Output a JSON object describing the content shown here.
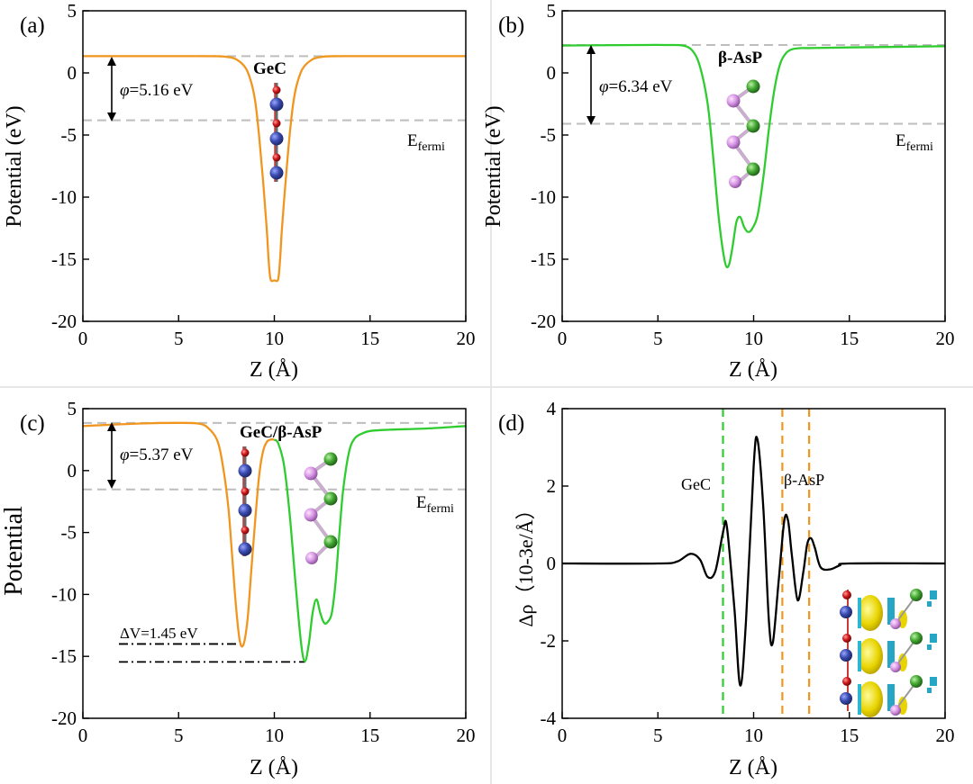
{
  "chart_data": [
    {
      "type": "line",
      "panel_label": "(a)",
      "title": "GeC",
      "xlabel": "Z (Å)",
      "ylabel": "Potential (eV)",
      "xlim": [
        0,
        20
      ],
      "ylim": [
        -20,
        5
      ],
      "xticks": [
        0,
        5,
        10,
        15,
        20
      ],
      "yticks": [
        5,
        0,
        -5,
        -10,
        -15,
        -20
      ],
      "series": [
        {
          "name": "GeC",
          "color": "#f0961e",
          "x": [
            0,
            6,
            7,
            7.5,
            8,
            8.5,
            8.8,
            9,
            9.2,
            9.4,
            9.6,
            9.7,
            9.8,
            10,
            10.2,
            10.3,
            10.4,
            10.6,
            10.8,
            11,
            11.2,
            11.5,
            12,
            12.5,
            13,
            14,
            20
          ],
          "y": [
            1.35,
            1.35,
            1.34,
            1.3,
            1.1,
            0.4,
            -0.8,
            -2.3,
            -5,
            -8.5,
            -12.5,
            -15,
            -16.6,
            -16.7,
            -16.6,
            -15,
            -12.5,
            -8.5,
            -5,
            -2.3,
            -0.8,
            0.4,
            1.1,
            1.3,
            1.34,
            1.35,
            1.35
          ]
        }
      ],
      "reference_lines": [
        {
          "name": "vacuum level",
          "y": 1.35
        },
        {
          "name": "E_fermi",
          "y": -3.81
        }
      ],
      "annotations": {
        "phi_symbol": "φ",
        "phi_text": "=5.16 eV",
        "efermi_main": "E",
        "efermi_sub": "fermi"
      }
    },
    {
      "type": "line",
      "panel_label": "(b)",
      "title": "β-AsP",
      "xlabel": "Z (Å)",
      "ylabel": "Potential (eV)",
      "xlim": [
        0,
        20
      ],
      "ylim": [
        -20,
        5
      ],
      "xticks": [
        0,
        5,
        10,
        15,
        20
      ],
      "yticks": [
        5,
        0,
        -5,
        -10,
        -15,
        -20
      ],
      "series": [
        {
          "name": "β-AsP",
          "color": "#2fcc2f",
          "x": [
            0,
            4,
            5.5,
            6.3,
            6.8,
            7.2,
            7.6,
            7.9,
            8.2,
            8.5,
            8.7,
            8.9,
            9.1,
            9.3,
            9.5,
            9.7,
            9.9,
            10.2,
            10.5,
            10.8,
            11.1,
            11.4,
            11.7,
            12,
            12.5,
            13,
            15,
            20
          ],
          "y": [
            2.2,
            2.25,
            2.25,
            2.2,
            1.8,
            0.5,
            -2.5,
            -7,
            -12,
            -15.2,
            -15.5,
            -14,
            -12,
            -11.6,
            -12.4,
            -12.8,
            -12.6,
            -11.5,
            -8.5,
            -4.5,
            -1.2,
            0.8,
            1.6,
            1.9,
            2.0,
            2.0,
            2.05,
            2.15
          ]
        }
      ],
      "reference_lines": [
        {
          "name": "vacuum level",
          "y": 2.25
        },
        {
          "name": "E_fermi",
          "y": -4.09
        }
      ],
      "annotations": {
        "phi_symbol": "φ",
        "phi_text": "=6.34 eV",
        "efermi_main": "E",
        "efermi_sub": "fermi"
      }
    },
    {
      "type": "line",
      "panel_label": "(c)",
      "title": "GeC/β-AsP",
      "xlabel": "Z (Å)",
      "ylabel": "Potential",
      "xlim": [
        0,
        20
      ],
      "ylim": [
        -20,
        5
      ],
      "xticks": [
        0,
        5,
        10,
        15,
        20
      ],
      "yticks": [
        5,
        0,
        -5,
        -10,
        -15,
        -20
      ],
      "series": [
        {
          "name": "GeC side",
          "color": "#f0961e",
          "x": [
            0,
            3,
            5,
            6,
            6.5,
            7,
            7.3,
            7.6,
            7.8,
            8,
            8.2,
            8.4,
            8.6,
            8.8,
            9,
            9.2,
            9.4,
            9.6,
            9.8,
            10
          ],
          "y": [
            3.6,
            3.8,
            3.85,
            3.8,
            3.5,
            2.5,
            0.5,
            -3,
            -7,
            -11,
            -13.8,
            -14,
            -12,
            -8,
            -4,
            -0.5,
            1.5,
            2.3,
            2.5,
            2.5
          ]
        },
        {
          "name": "β-AsP side",
          "color": "#2fcc2f",
          "x": [
            10,
            10.2,
            10.5,
            10.8,
            11.1,
            11.4,
            11.6,
            11.8,
            12,
            12.2,
            12.4,
            12.6,
            12.8,
            13,
            13.2,
            13.4,
            13.6,
            13.9,
            14.2,
            14.6,
            15,
            16,
            18,
            20
          ],
          "y": [
            2.5,
            2.2,
            0.5,
            -3.5,
            -9,
            -14,
            -15.4,
            -14,
            -11.5,
            -10.4,
            -11.5,
            -12.3,
            -12.2,
            -11.5,
            -9,
            -5,
            -1.5,
            1.5,
            2.6,
            3.0,
            3.2,
            3.3,
            3.4,
            3.6
          ]
        }
      ],
      "reference_lines": [
        {
          "name": "vacuum level",
          "y": 3.85
        },
        {
          "name": "E_fermi",
          "y": -1.52
        },
        {
          "name": "GeC well bottom",
          "y": -14.0
        },
        {
          "name": "β-AsP well bottom",
          "y": -15.45
        }
      ],
      "annotations": {
        "phi_symbol": "φ",
        "phi_text": "=5.37 eV",
        "dv_text": "ΔV=1.45 eV",
        "efermi_main": "E",
        "efermi_sub": "fermi"
      }
    },
    {
      "type": "line",
      "panel_label": "(d)",
      "title": "",
      "xlabel": "Z (Å)",
      "ylabel": "Δρ（10-3e/Å）",
      "xlim": [
        0,
        20
      ],
      "ylim": [
        -4,
        4
      ],
      "xticks": [
        0,
        5,
        10,
        15,
        20
      ],
      "yticks": [
        4,
        2,
        0,
        -2,
        -4
      ],
      "series": [
        {
          "name": "Δρ",
          "color": "#000000",
          "x": [
            0,
            5,
            6,
            6.7,
            7.2,
            7.6,
            8,
            8.4,
            8.6,
            9,
            9.3,
            9.6,
            10,
            10.2,
            10.5,
            10.8,
            11,
            11.3,
            11.6,
            11.8,
            12,
            12.3,
            12.6,
            12.8,
            13,
            13.2,
            13.5,
            14,
            14.5,
            15,
            20
          ],
          "y": [
            0,
            0,
            0.05,
            0.25,
            0.1,
            -0.35,
            -0.2,
            0.8,
            0.95,
            -1.2,
            -3.15,
            -1.5,
            2.5,
            3.2,
            1.5,
            -1.5,
            -2.05,
            -0.5,
            1.1,
            1.1,
            0.2,
            -0.95,
            -0.2,
            0.5,
            0.65,
            0.4,
            -0.1,
            -0.15,
            -0.05,
            0,
            0
          ]
        }
      ],
      "reference_lines": [
        {
          "name": "GeC",
          "x": 8.4,
          "color": "#2fcc2f"
        },
        {
          "name": "β-AsP left",
          "x": 11.5,
          "color": "#f0961e"
        },
        {
          "name": "β-AsP right",
          "x": 12.9,
          "color": "#f0961e"
        }
      ],
      "annotations": {
        "gec_label": "GeC",
        "asp_label": "β-AsP"
      }
    }
  ]
}
